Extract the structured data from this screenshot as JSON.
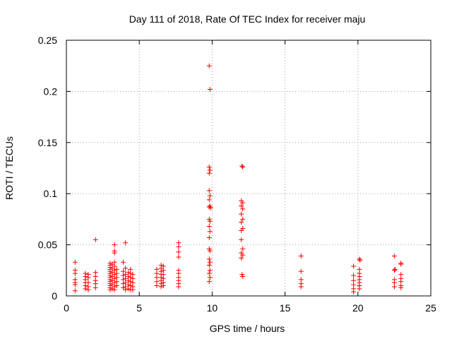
{
  "chart_data": {
    "type": "scatter",
    "title": "Day 111 of 2018, Rate Of TEC Index for receiver maju",
    "xlabel": "GPS time / hours",
    "ylabel": "ROTI / TECUs",
    "xlim": [
      0,
      25
    ],
    "ylim": [
      0,
      0.25
    ],
    "xticks": [
      0,
      5,
      10,
      15,
      20,
      25
    ],
    "xtick_labels": [
      "0",
      "5",
      "10",
      "15",
      "20",
      "25"
    ],
    "yticks": [
      0,
      0.05,
      0.1,
      0.15,
      0.2,
      0.25
    ],
    "ytick_labels": [
      "0",
      "0.05",
      "0.1",
      "0.15",
      "0.2",
      "0.25"
    ],
    "grid": true,
    "marker": "+",
    "marker_color": "#ff0000",
    "series": [
      {
        "name": "ROTI",
        "points": [
          [
            0.6,
            0.033
          ],
          [
            0.6,
            0.025
          ],
          [
            0.6,
            0.022
          ],
          [
            0.6,
            0.016
          ],
          [
            0.6,
            0.013
          ],
          [
            0.6,
            0.011
          ],
          [
            0.6,
            0.005
          ],
          [
            1.3,
            0.022
          ],
          [
            1.3,
            0.019
          ],
          [
            1.3,
            0.016
          ],
          [
            1.3,
            0.013
          ],
          [
            1.3,
            0.01
          ],
          [
            1.3,
            0.007
          ],
          [
            1.5,
            0.021
          ],
          [
            1.5,
            0.018
          ],
          [
            1.5,
            0.013
          ],
          [
            1.5,
            0.009
          ],
          [
            1.5,
            0.006
          ],
          [
            2.0,
            0.055
          ],
          [
            2.0,
            0.023
          ],
          [
            2.0,
            0.019
          ],
          [
            2.0,
            0.015
          ],
          [
            2.0,
            0.012
          ],
          [
            2.0,
            0.008
          ],
          [
            3.0,
            0.032
          ],
          [
            3.0,
            0.03
          ],
          [
            3.0,
            0.028
          ],
          [
            3.0,
            0.026
          ],
          [
            3.0,
            0.024
          ],
          [
            3.0,
            0.022
          ],
          [
            3.0,
            0.02
          ],
          [
            3.0,
            0.018
          ],
          [
            3.0,
            0.016
          ],
          [
            3.0,
            0.014
          ],
          [
            3.0,
            0.012
          ],
          [
            3.0,
            0.01
          ],
          [
            3.0,
            0.008
          ],
          [
            3.0,
            0.006
          ],
          [
            3.15,
            0.031
          ],
          [
            3.15,
            0.027
          ],
          [
            3.15,
            0.023
          ],
          [
            3.15,
            0.019
          ],
          [
            3.15,
            0.015
          ],
          [
            3.15,
            0.011
          ],
          [
            3.15,
            0.007
          ],
          [
            3.3,
            0.044
          ],
          [
            3.3,
            0.042
          ],
          [
            3.3,
            0.05
          ],
          [
            3.3,
            0.033
          ],
          [
            3.3,
            0.029
          ],
          [
            3.3,
            0.025
          ],
          [
            3.3,
            0.021
          ],
          [
            3.3,
            0.017
          ],
          [
            3.3,
            0.013
          ],
          [
            3.3,
            0.009
          ],
          [
            3.3,
            0.006
          ],
          [
            3.45,
            0.026
          ],
          [
            3.45,
            0.022
          ],
          [
            3.45,
            0.018
          ],
          [
            3.45,
            0.014
          ],
          [
            3.45,
            0.01
          ],
          [
            3.9,
            0.033
          ],
          [
            3.9,
            0.024
          ],
          [
            3.9,
            0.02
          ],
          [
            3.9,
            0.016
          ],
          [
            3.9,
            0.012
          ],
          [
            3.9,
            0.008
          ],
          [
            4.05,
            0.052
          ],
          [
            4.05,
            0.027
          ],
          [
            4.05,
            0.021
          ],
          [
            4.05,
            0.017
          ],
          [
            4.05,
            0.013
          ],
          [
            4.05,
            0.009
          ],
          [
            4.05,
            0.006
          ],
          [
            4.25,
            0.023
          ],
          [
            4.25,
            0.019
          ],
          [
            4.25,
            0.015
          ],
          [
            4.25,
            0.011
          ],
          [
            4.25,
            0.007
          ],
          [
            4.4,
            0.026
          ],
          [
            4.4,
            0.022
          ],
          [
            4.4,
            0.018
          ],
          [
            4.4,
            0.014
          ],
          [
            4.4,
            0.01
          ],
          [
            4.4,
            0.006
          ],
          [
            4.55,
            0.021
          ],
          [
            4.55,
            0.017
          ],
          [
            4.55,
            0.013
          ],
          [
            4.55,
            0.009
          ],
          [
            4.55,
            0.006
          ],
          [
            6.2,
            0.026
          ],
          [
            6.2,
            0.022
          ],
          [
            6.2,
            0.018
          ],
          [
            6.2,
            0.014
          ],
          [
            6.2,
            0.01
          ],
          [
            6.5,
            0.03
          ],
          [
            6.5,
            0.027
          ],
          [
            6.5,
            0.024
          ],
          [
            6.5,
            0.021
          ],
          [
            6.5,
            0.018
          ],
          [
            6.5,
            0.015
          ],
          [
            6.5,
            0.012
          ],
          [
            6.5,
            0.009
          ],
          [
            6.65,
            0.029
          ],
          [
            6.65,
            0.025
          ],
          [
            6.65,
            0.021
          ],
          [
            6.65,
            0.017
          ],
          [
            6.65,
            0.013
          ],
          [
            6.65,
            0.01
          ],
          [
            7.7,
            0.052
          ],
          [
            7.7,
            0.048
          ],
          [
            7.7,
            0.043
          ],
          [
            7.7,
            0.038
          ],
          [
            7.7,
            0.025
          ],
          [
            7.7,
            0.022
          ],
          [
            7.7,
            0.018
          ],
          [
            7.7,
            0.015
          ],
          [
            7.7,
            0.012
          ],
          [
            7.7,
            0.009
          ],
          [
            9.8,
            0.225
          ],
          [
            9.85,
            0.202
          ],
          [
            9.8,
            0.126
          ],
          [
            9.85,
            0.123
          ],
          [
            9.8,
            0.12
          ],
          [
            9.8,
            0.103
          ],
          [
            9.85,
            0.098
          ],
          [
            9.8,
            0.094
          ],
          [
            9.85,
            0.088
          ],
          [
            9.8,
            0.087
          ],
          [
            9.9,
            0.086
          ],
          [
            9.8,
            0.075
          ],
          [
            9.85,
            0.073
          ],
          [
            9.8,
            0.068
          ],
          [
            9.85,
            0.063
          ],
          [
            9.8,
            0.057
          ],
          [
            9.8,
            0.046
          ],
          [
            9.85,
            0.044
          ],
          [
            9.8,
            0.036
          ],
          [
            9.85,
            0.033
          ],
          [
            9.8,
            0.03
          ],
          [
            9.85,
            0.025
          ],
          [
            9.8,
            0.022
          ],
          [
            9.85,
            0.018
          ],
          [
            9.8,
            0.014
          ],
          [
            12.05,
            0.127
          ],
          [
            12.1,
            0.126
          ],
          [
            12.0,
            0.093
          ],
          [
            12.1,
            0.091
          ],
          [
            12.0,
            0.088
          ],
          [
            12.1,
            0.085
          ],
          [
            12.0,
            0.08
          ],
          [
            12.1,
            0.075
          ],
          [
            12.0,
            0.072
          ],
          [
            12.1,
            0.066
          ],
          [
            12.0,
            0.064
          ],
          [
            12.0,
            0.055
          ],
          [
            12.1,
            0.046
          ],
          [
            12.0,
            0.042
          ],
          [
            12.1,
            0.04
          ],
          [
            12.0,
            0.037
          ],
          [
            12.05,
            0.021
          ],
          [
            12.1,
            0.019
          ],
          [
            16.1,
            0.039
          ],
          [
            16.1,
            0.024
          ],
          [
            16.1,
            0.016
          ],
          [
            16.1,
            0.012
          ],
          [
            16.1,
            0.009
          ],
          [
            19.7,
            0.029
          ],
          [
            19.7,
            0.02
          ],
          [
            19.7,
            0.015
          ],
          [
            19.7,
            0.011
          ],
          [
            19.7,
            0.007
          ],
          [
            19.7,
            0.004
          ],
          [
            20.1,
            0.036
          ],
          [
            20.15,
            0.035
          ],
          [
            20.1,
            0.026
          ],
          [
            20.1,
            0.022
          ],
          [
            20.1,
            0.019
          ],
          [
            20.1,
            0.016
          ],
          [
            20.1,
            0.013
          ],
          [
            20.1,
            0.01
          ],
          [
            20.1,
            0.007
          ],
          [
            22.5,
            0.039
          ],
          [
            22.55,
            0.026
          ],
          [
            22.5,
            0.025
          ],
          [
            22.5,
            0.016
          ],
          [
            22.5,
            0.013
          ],
          [
            22.5,
            0.009
          ],
          [
            22.95,
            0.032
          ],
          [
            22.95,
            0.031
          ],
          [
            22.95,
            0.021
          ],
          [
            22.95,
            0.017
          ],
          [
            22.95,
            0.014
          ],
          [
            22.95,
            0.01
          ],
          [
            22.95,
            0.008
          ]
        ]
      }
    ]
  }
}
